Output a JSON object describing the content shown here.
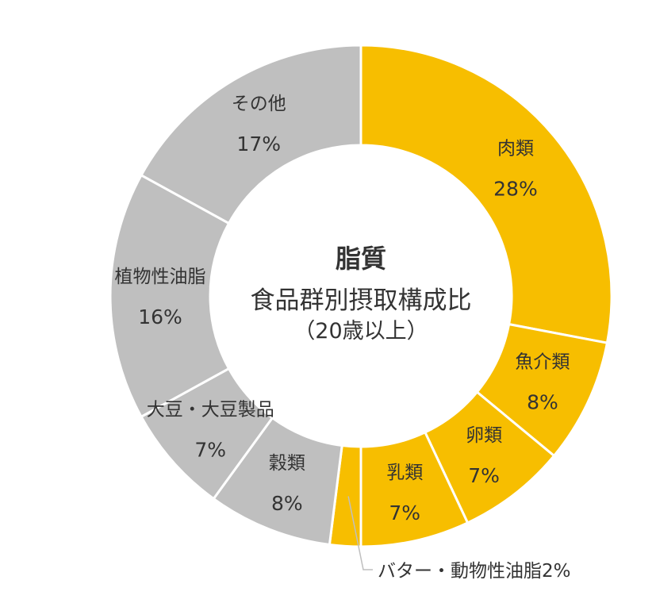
{
  "chart_data": {
    "type": "pie",
    "variant": "donut",
    "title": "脂質",
    "subtitle": "食品群別摂取構成比",
    "note": "（20歳以上）",
    "unit": "%",
    "slices": [
      {
        "label": "肉類",
        "value": 28,
        "color": "#F7BE00"
      },
      {
        "label": "魚介類",
        "value": 8,
        "color": "#F7BE00"
      },
      {
        "label": "卵類",
        "value": 7,
        "color": "#F7BE00"
      },
      {
        "label": "乳類",
        "value": 7,
        "color": "#F7BE00"
      },
      {
        "label": "バター・動物性油脂",
        "value": 2,
        "color": "#F7BE00",
        "external": true
      },
      {
        "label": "穀類",
        "value": 8,
        "color": "#BFBFBF"
      },
      {
        "label": "大豆・大豆製品",
        "value": 7,
        "color": "#BFBFBF"
      },
      {
        "label": "植物性油脂",
        "value": 16,
        "color": "#BFBFBF"
      },
      {
        "label": "その他",
        "value": 17,
        "color": "#BFBFBF"
      }
    ]
  }
}
